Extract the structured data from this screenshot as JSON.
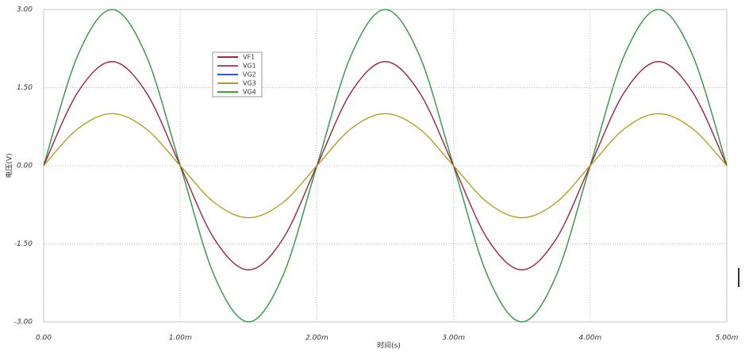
{
  "chart_data": {
    "type": "line",
    "xlabel": "时间(s)",
    "ylabel": "电压(V)",
    "x": [
      0,
      0.00025,
      0.0005,
      0.00075,
      0.001,
      0.00125,
      0.0015,
      0.00175,
      0.002,
      0.00225,
      0.0025,
      0.00275,
      0.003,
      0.00325,
      0.0035,
      0.00375,
      0.004,
      0.00425,
      0.0045,
      0.00475,
      0.005
    ],
    "series": [
      {
        "name": "VF1",
        "color": "#9a2a3a",
        "values": [
          0,
          1.41,
          2,
          1.41,
          0,
          -1.41,
          -2,
          -1.41,
          0,
          1.41,
          2,
          1.41,
          0,
          -1.41,
          -2,
          -1.41,
          0,
          1.41,
          2,
          1.41,
          0
        ]
      },
      {
        "name": "VG1",
        "color": "#b04080",
        "values": [
          0,
          1.41,
          2,
          1.41,
          0,
          -1.41,
          -2,
          -1.41,
          0,
          1.41,
          2,
          1.41,
          0,
          -1.41,
          -2,
          -1.41,
          0,
          1.41,
          2,
          1.41,
          0
        ]
      },
      {
        "name": "VG2",
        "color": "#3a55c8",
        "values": [
          0,
          2.12,
          3,
          2.12,
          0,
          -2.12,
          -3,
          -2.12,
          0,
          2.12,
          3,
          2.12,
          0,
          -2.12,
          -3,
          -2.12,
          0,
          2.12,
          3,
          2.12,
          0
        ]
      },
      {
        "name": "VG3",
        "color": "#a8a020",
        "values": [
          0,
          0.71,
          1,
          0.71,
          0,
          -0.71,
          -1,
          -0.71,
          0,
          0.71,
          1,
          0.71,
          0,
          -0.71,
          -1,
          -0.71,
          0,
          0.71,
          1,
          0.71,
          0
        ]
      },
      {
        "name": "VG4",
        "color": "#3aa03a",
        "values": [
          0,
          2.12,
          3,
          2.12,
          0,
          -2.12,
          -3,
          -2.12,
          0,
          2.12,
          3,
          2.12,
          0,
          -2.12,
          -3,
          -2.12,
          0,
          2.12,
          3,
          2.12,
          0
        ]
      }
    ],
    "xlim": [
      0,
      0.005
    ],
    "xticks": [
      {
        "value": 0,
        "label": "0.00"
      },
      {
        "value": 0.001,
        "label": "1.00m"
      },
      {
        "value": 0.002,
        "label": "2.00m"
      },
      {
        "value": 0.003,
        "label": "3.00m"
      },
      {
        "value": 0.004,
        "label": "4.00m"
      },
      {
        "value": 0.005,
        "label": "5.00m"
      }
    ],
    "ylim": [
      -3,
      3
    ],
    "yticks": [
      {
        "value": -3,
        "label": "-3.00"
      },
      {
        "value": -1.5,
        "label": "-1.50"
      },
      {
        "value": 0,
        "label": "0.00"
      },
      {
        "value": 1.5,
        "label": "1.50"
      },
      {
        "value": 3,
        "label": "3.00"
      }
    ],
    "grid": true
  }
}
